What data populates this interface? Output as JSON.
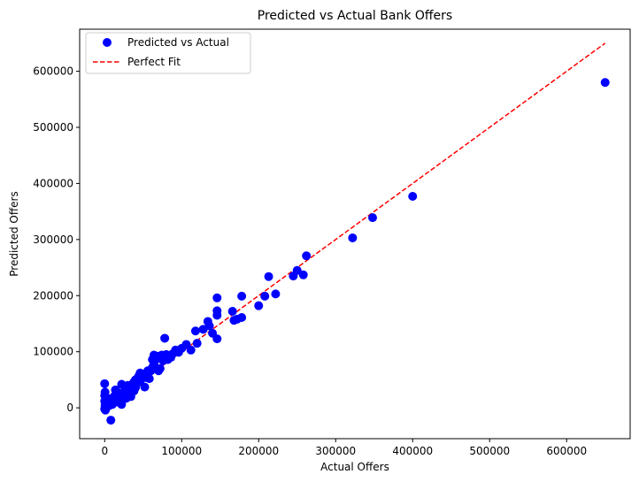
{
  "chart_data": {
    "type": "scatter",
    "title": "Predicted vs Actual Bank Offers",
    "xlabel": "Actual Offers",
    "ylabel": "Predicted Offers",
    "xlim": [
      -32500,
      682500
    ],
    "ylim": [
      -55000,
      675000
    ],
    "x_ticks": [
      0,
      100000,
      200000,
      300000,
      400000,
      500000,
      600000
    ],
    "y_ticks": [
      0,
      100000,
      200000,
      300000,
      400000,
      500000,
      600000
    ],
    "grid": false,
    "legend_position": "upper-left",
    "series": [
      {
        "name": "Predicted vs Actual",
        "kind": "scatter",
        "color": "#0000ff",
        "points": [
          [
            650000,
            580000
          ],
          [
            400000,
            377000
          ],
          [
            348000,
            339000
          ],
          [
            322000,
            303000
          ],
          [
            262000,
            271000
          ],
          [
            258000,
            237000
          ],
          [
            250000,
            245000
          ],
          [
            245000,
            235000
          ],
          [
            222000,
            203000
          ],
          [
            213000,
            234000
          ],
          [
            208000,
            199000
          ],
          [
            200000,
            182000
          ],
          [
            178000,
            161000
          ],
          [
            178000,
            199000
          ],
          [
            172000,
            158000
          ],
          [
            168000,
            156000
          ],
          [
            166000,
            172000
          ],
          [
            146000,
            196000
          ],
          [
            146000,
            173000
          ],
          [
            146000,
            165000
          ],
          [
            146000,
            123000
          ],
          [
            140000,
            133000
          ],
          [
            136000,
            146000
          ],
          [
            134000,
            154000
          ],
          [
            128000,
            140000
          ],
          [
            120000,
            115000
          ],
          [
            118000,
            137000
          ],
          [
            112000,
            103000
          ],
          [
            106000,
            113000
          ],
          [
            100000,
            106000
          ],
          [
            96000,
            99000
          ],
          [
            92000,
            103000
          ],
          [
            88000,
            96000
          ],
          [
            86000,
            90000
          ],
          [
            82000,
            86000
          ],
          [
            78000,
            124000
          ],
          [
            80000,
            95000
          ],
          [
            76000,
            84000
          ],
          [
            74000,
            94000
          ],
          [
            72000,
            70000
          ],
          [
            70000,
            66000
          ],
          [
            68000,
            92000
          ],
          [
            66000,
            86000
          ],
          [
            64000,
            78000
          ],
          [
            64000,
            94000
          ],
          [
            62000,
            72000
          ],
          [
            62000,
            86000
          ],
          [
            60000,
            66000
          ],
          [
            58000,
            52000
          ],
          [
            56000,
            66000
          ],
          [
            55000,
            62000
          ],
          [
            54000,
            54000
          ],
          [
            52000,
            60000
          ],
          [
            52000,
            37000
          ],
          [
            50000,
            56000
          ],
          [
            48000,
            52000
          ],
          [
            46000,
            48000
          ],
          [
            46000,
            62000
          ],
          [
            44000,
            56000
          ],
          [
            42000,
            44000
          ],
          [
            40000,
            50000
          ],
          [
            40000,
            36000
          ],
          [
            38000,
            30000
          ],
          [
            38000,
            46000
          ],
          [
            36000,
            42000
          ],
          [
            34000,
            20000
          ],
          [
            34000,
            38000
          ],
          [
            32000,
            28000
          ],
          [
            30000,
            34000
          ],
          [
            30000,
            40000
          ],
          [
            28000,
            17000
          ],
          [
            28000,
            24000
          ],
          [
            26000,
            30000
          ],
          [
            24000,
            20000
          ],
          [
            22000,
            14000
          ],
          [
            22000,
            42000
          ],
          [
            22000,
            6000
          ],
          [
            20000,
            26000
          ],
          [
            18000,
            18000
          ],
          [
            18000,
            10000
          ],
          [
            16000,
            24000
          ],
          [
            14000,
            14000
          ],
          [
            14000,
            32000
          ],
          [
            12000,
            10000
          ],
          [
            12000,
            20000
          ],
          [
            10000,
            6000
          ],
          [
            8000,
            -22000
          ],
          [
            8000,
            12000
          ],
          [
            6000,
            4000
          ],
          [
            6000,
            16000
          ],
          [
            4000,
            8000
          ],
          [
            2000,
            0
          ],
          [
            2000,
            16000
          ],
          [
            1000,
            -4000
          ],
          [
            500,
            4000
          ],
          [
            0,
            22000
          ],
          [
            0,
            43000
          ],
          [
            0,
            12000
          ],
          [
            0,
            -2000
          ],
          [
            500,
            28000
          ]
        ]
      },
      {
        "name": "Perfect Fit",
        "kind": "line",
        "color": "#ff0000",
        "dash": "dashed",
        "points": [
          [
            0,
            0
          ],
          [
            650000,
            650000
          ]
        ]
      }
    ]
  }
}
